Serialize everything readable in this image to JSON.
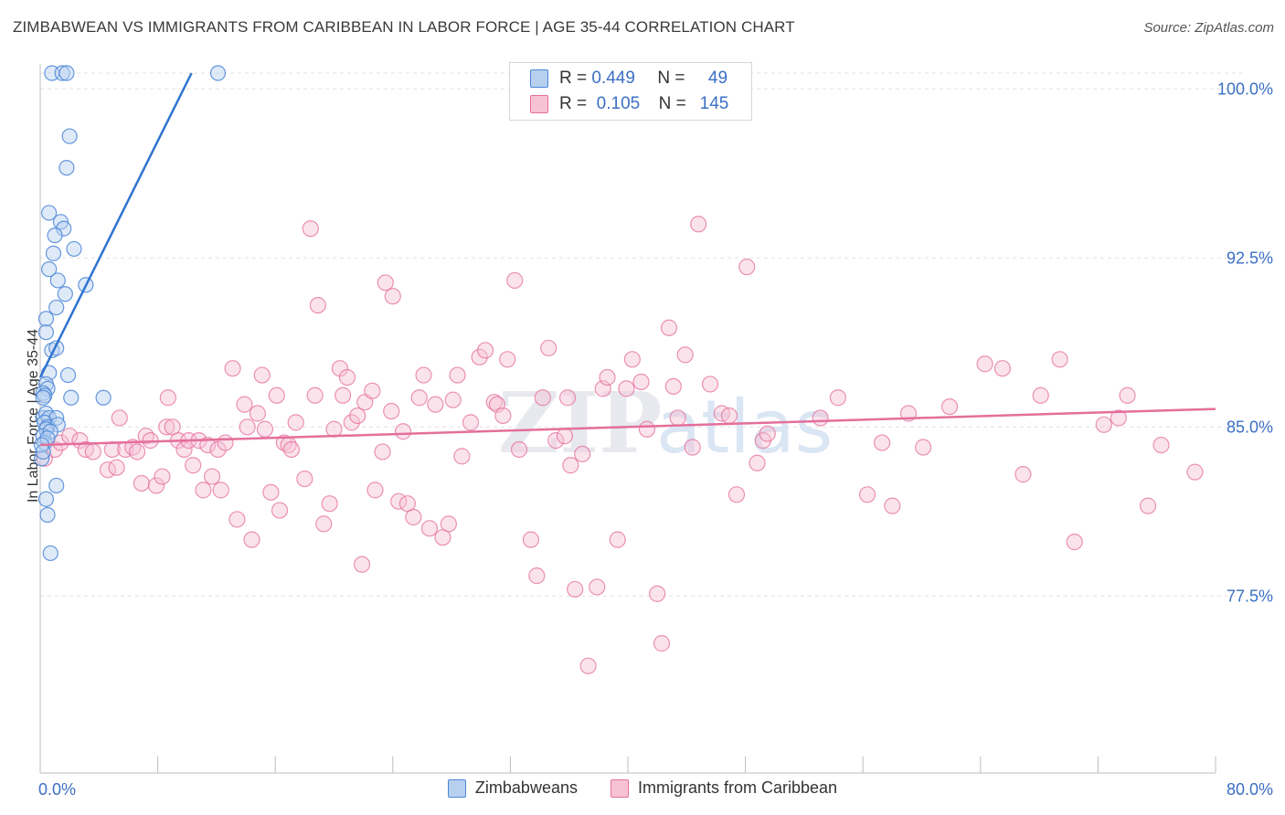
{
  "title": "ZIMBABWEAN VS IMMIGRANTS FROM CARIBBEAN IN LABOR FORCE | AGE 35-44 CORRELATION CHART",
  "source": "Source: ZipAtlas.com",
  "watermark": {
    "zip": "ZIP",
    "atlas": "atlas"
  },
  "colors": {
    "blue": "#4a86d8",
    "blue_fill": "#b8d0f0",
    "pink": "#e46f9b",
    "pink_fill": "#f7c2d4",
    "axis_text": "#3b6fc4"
  },
  "legend": {
    "rows": [
      {
        "r_label": "R =",
        "r_value": "0.449",
        "n_label": "N =",
        "n_value": "49"
      },
      {
        "r_label": "R =",
        "r_value": "0.105",
        "n_label": "N =",
        "n_value": "145"
      }
    ]
  },
  "bottom_legend": [
    "Zimbabweans",
    "Immigrants from Caribbean"
  ],
  "chart_data": {
    "type": "scatter",
    "title": "ZIMBABWEAN VS IMMIGRANTS FROM CARIBBEAN IN LABOR FORCE | AGE 35-44 CORRELATION CHART",
    "xlabel": "",
    "ylabel": "In Labor Force | Age 35-44",
    "xlim": [
      0,
      80
    ],
    "ylim": [
      70.5,
      101
    ],
    "x_tick_labels": [
      "0.0%",
      "80.0%"
    ],
    "y_ticks": [
      {
        "value": 100.0,
        "label": "100.0%"
      },
      {
        "value": 92.5,
        "label": "92.5%"
      },
      {
        "value": 85.0,
        "label": "85.0%"
      },
      {
        "value": 77.5,
        "label": "77.5%"
      }
    ],
    "series": [
      {
        "name": "Zimbabweans",
        "color": "#4a86d8",
        "trend": {
          "x": [
            0.0,
            10.3
          ],
          "y": [
            87.2,
            100.7
          ]
        },
        "points": [
          [
            0.8,
            100.7
          ],
          [
            1.5,
            100.7
          ],
          [
            1.8,
            100.7
          ],
          [
            12.1,
            100.7
          ],
          [
            2.0,
            97.9
          ],
          [
            1.8,
            96.5
          ],
          [
            0.6,
            94.5
          ],
          [
            1.4,
            94.1
          ],
          [
            1.6,
            93.8
          ],
          [
            1.0,
            93.5
          ],
          [
            2.3,
            92.9
          ],
          [
            0.9,
            92.7
          ],
          [
            0.6,
            92.0
          ],
          [
            1.2,
            91.5
          ],
          [
            3.1,
            91.3
          ],
          [
            1.7,
            90.9
          ],
          [
            1.1,
            90.3
          ],
          [
            0.4,
            89.8
          ],
          [
            0.4,
            89.2
          ],
          [
            0.8,
            88.4
          ],
          [
            1.1,
            88.5
          ],
          [
            1.9,
            87.3
          ],
          [
            0.6,
            87.4
          ],
          [
            0.4,
            86.9
          ],
          [
            0.5,
            86.7
          ],
          [
            0.2,
            86.5
          ],
          [
            0.3,
            86.4
          ],
          [
            0.2,
            86.3
          ],
          [
            2.1,
            86.3
          ],
          [
            4.3,
            86.3
          ],
          [
            0.2,
            85.4
          ],
          [
            0.4,
            85.6
          ],
          [
            0.6,
            85.4
          ],
          [
            1.1,
            85.4
          ],
          [
            0.3,
            85.2
          ],
          [
            0.5,
            85.0
          ],
          [
            1.2,
            85.1
          ],
          [
            0.4,
            84.9
          ],
          [
            0.2,
            84.6
          ],
          [
            0.7,
            84.8
          ],
          [
            0.3,
            84.3
          ],
          [
            0.5,
            84.5
          ],
          [
            0.1,
            84.2
          ],
          [
            0.1,
            83.6
          ],
          [
            1.1,
            82.4
          ],
          [
            0.4,
            81.8
          ],
          [
            0.5,
            81.1
          ],
          [
            0.7,
            79.4
          ],
          [
            0.2,
            83.9
          ]
        ]
      },
      {
        "name": "Immigrants from Caribbean",
        "color": "#e46f9b",
        "trend": {
          "x": [
            0.0,
            80.0
          ],
          "y": [
            84.2,
            85.8
          ]
        },
        "points": [
          [
            0.3,
            83.6
          ],
          [
            1.0,
            84.0
          ],
          [
            1.4,
            84.3
          ],
          [
            2.0,
            84.6
          ],
          [
            2.7,
            84.4
          ],
          [
            3.1,
            84.0
          ],
          [
            3.6,
            83.9
          ],
          [
            4.6,
            83.1
          ],
          [
            4.9,
            84.0
          ],
          [
            5.2,
            83.2
          ],
          [
            5.4,
            85.4
          ],
          [
            5.8,
            84.0
          ],
          [
            6.3,
            84.1
          ],
          [
            6.6,
            83.9
          ],
          [
            6.9,
            82.5
          ],
          [
            7.2,
            84.6
          ],
          [
            7.5,
            84.4
          ],
          [
            7.9,
            82.4
          ],
          [
            8.3,
            82.8
          ],
          [
            8.6,
            85.0
          ],
          [
            8.7,
            86.3
          ],
          [
            9.0,
            85.0
          ],
          [
            9.4,
            84.4
          ],
          [
            9.8,
            84.0
          ],
          [
            10.1,
            84.4
          ],
          [
            10.4,
            83.3
          ],
          [
            10.8,
            84.4
          ],
          [
            11.1,
            82.2
          ],
          [
            11.4,
            84.2
          ],
          [
            11.7,
            82.8
          ],
          [
            12.1,
            84.0
          ],
          [
            12.3,
            82.2
          ],
          [
            12.6,
            84.3
          ],
          [
            13.1,
            87.6
          ],
          [
            13.4,
            80.9
          ],
          [
            13.9,
            86.0
          ],
          [
            14.1,
            85.0
          ],
          [
            14.4,
            80.0
          ],
          [
            14.8,
            85.6
          ],
          [
            15.1,
            87.3
          ],
          [
            15.3,
            84.9
          ],
          [
            15.7,
            82.1
          ],
          [
            16.1,
            86.4
          ],
          [
            16.3,
            81.3
          ],
          [
            16.6,
            84.3
          ],
          [
            16.9,
            84.2
          ],
          [
            17.1,
            84.0
          ],
          [
            17.4,
            85.2
          ],
          [
            18.0,
            82.7
          ],
          [
            18.4,
            93.8
          ],
          [
            18.7,
            86.4
          ],
          [
            18.9,
            90.4
          ],
          [
            19.3,
            80.7
          ],
          [
            19.7,
            81.6
          ],
          [
            20.0,
            84.9
          ],
          [
            20.4,
            87.6
          ],
          [
            20.6,
            86.4
          ],
          [
            20.9,
            87.2
          ],
          [
            21.2,
            85.2
          ],
          [
            21.6,
            85.5
          ],
          [
            21.9,
            78.9
          ],
          [
            22.1,
            86.1
          ],
          [
            22.6,
            86.6
          ],
          [
            22.8,
            82.2
          ],
          [
            23.3,
            83.9
          ],
          [
            23.5,
            91.4
          ],
          [
            23.9,
            85.7
          ],
          [
            24.0,
            90.8
          ],
          [
            24.4,
            81.7
          ],
          [
            24.7,
            84.8
          ],
          [
            25.0,
            81.6
          ],
          [
            25.4,
            81.0
          ],
          [
            25.8,
            86.3
          ],
          [
            26.1,
            87.3
          ],
          [
            26.5,
            80.5
          ],
          [
            26.9,
            86.0
          ],
          [
            27.4,
            80.1
          ],
          [
            27.8,
            80.7
          ],
          [
            28.1,
            86.2
          ],
          [
            28.4,
            87.3
          ],
          [
            28.7,
            83.7
          ],
          [
            29.3,
            85.2
          ],
          [
            29.9,
            88.1
          ],
          [
            30.3,
            88.4
          ],
          [
            30.9,
            86.1
          ],
          [
            31.1,
            86.0
          ],
          [
            31.5,
            85.5
          ],
          [
            31.8,
            88.0
          ],
          [
            32.3,
            91.5
          ],
          [
            32.6,
            84.0
          ],
          [
            33.4,
            80.0
          ],
          [
            33.8,
            78.4
          ],
          [
            34.2,
            86.3
          ],
          [
            34.6,
            88.5
          ],
          [
            35.1,
            84.4
          ],
          [
            35.7,
            84.6
          ],
          [
            35.9,
            86.3
          ],
          [
            36.1,
            83.3
          ],
          [
            36.4,
            77.8
          ],
          [
            36.9,
            83.8
          ],
          [
            37.3,
            74.4
          ],
          [
            37.9,
            77.9
          ],
          [
            38.3,
            86.7
          ],
          [
            38.6,
            87.2
          ],
          [
            39.3,
            80.0
          ],
          [
            39.9,
            86.7
          ],
          [
            40.3,
            88.0
          ],
          [
            40.9,
            87.0
          ],
          [
            41.3,
            84.9
          ],
          [
            42.0,
            77.6
          ],
          [
            42.3,
            75.4
          ],
          [
            42.8,
            89.4
          ],
          [
            43.1,
            86.8
          ],
          [
            43.4,
            85.4
          ],
          [
            43.9,
            88.2
          ],
          [
            44.4,
            84.1
          ],
          [
            44.8,
            94.0
          ],
          [
            45.6,
            86.9
          ],
          [
            46.4,
            85.6
          ],
          [
            46.9,
            85.5
          ],
          [
            47.4,
            82.0
          ],
          [
            48.1,
            92.1
          ],
          [
            48.8,
            83.4
          ],
          [
            49.2,
            84.4
          ],
          [
            49.5,
            84.7
          ],
          [
            53.1,
            85.4
          ],
          [
            54.3,
            86.3
          ],
          [
            56.3,
            82.0
          ],
          [
            57.3,
            84.3
          ],
          [
            58.0,
            81.5
          ],
          [
            59.1,
            85.6
          ],
          [
            60.1,
            84.1
          ],
          [
            61.9,
            85.9
          ],
          [
            64.3,
            87.8
          ],
          [
            65.5,
            87.6
          ],
          [
            66.9,
            82.9
          ],
          [
            68.1,
            86.4
          ],
          [
            69.4,
            88.0
          ],
          [
            70.4,
            79.9
          ],
          [
            72.4,
            85.1
          ],
          [
            73.4,
            85.4
          ],
          [
            75.4,
            81.5
          ],
          [
            78.6,
            83.0
          ],
          [
            74.0,
            86.4
          ],
          [
            76.3,
            84.2
          ]
        ]
      }
    ]
  }
}
